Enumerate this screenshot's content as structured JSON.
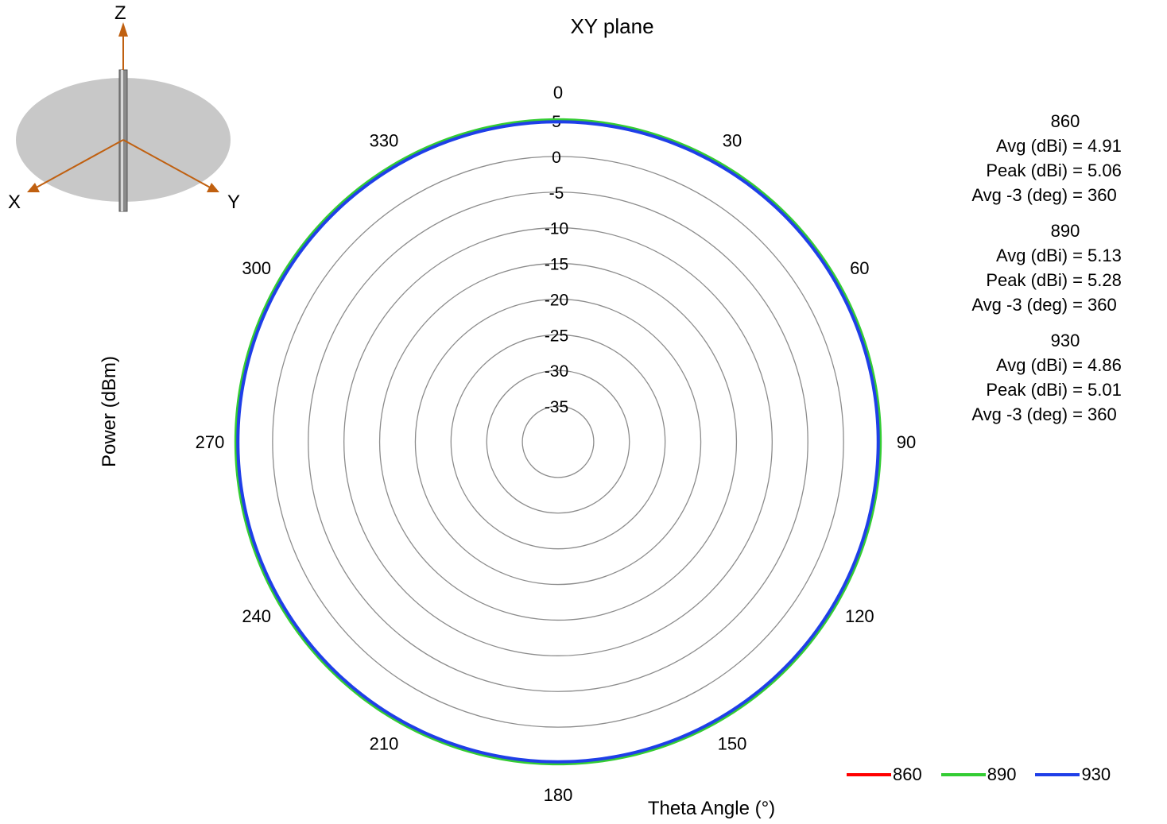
{
  "chart_data": {
    "type": "polar",
    "title": "XY plane",
    "xlabel": "Theta  Angle (°)",
    "ylabel": "Power (dBm)",
    "radial_range": [
      -40,
      5
    ],
    "radial_ticks": [
      "5",
      "0",
      "-5",
      "-10",
      "-15",
      "-20",
      "-25",
      "-30",
      "-35"
    ],
    "angle_ticks": [
      "0",
      "30",
      "60",
      "90",
      "120",
      "150",
      "180",
      "210",
      "240",
      "270",
      "300",
      "330"
    ],
    "angle_unit": "deg",
    "grid": true,
    "series": [
      {
        "name": "860",
        "color": "#ff0000",
        "theta": [
          0,
          45,
          90,
          135,
          180,
          225,
          270,
          315
        ],
        "values": [
          4.91,
          4.91,
          4.91,
          4.91,
          4.91,
          4.91,
          4.91,
          4.91
        ]
      },
      {
        "name": "890",
        "color": "#33cc33",
        "theta": [
          0,
          45,
          90,
          135,
          180,
          225,
          270,
          315
        ],
        "values": [
          5.13,
          5.13,
          5.13,
          5.13,
          5.13,
          5.13,
          5.13,
          5.13
        ]
      },
      {
        "name": "930",
        "color": "#1f3fe8",
        "theta": [
          0,
          45,
          90,
          135,
          180,
          225,
          270,
          315
        ],
        "values": [
          4.86,
          4.86,
          4.86,
          4.86,
          4.86,
          4.86,
          4.86,
          4.86
        ]
      }
    ],
    "legend_placement": "bottom-right"
  },
  "stats": [
    {
      "freq": "860",
      "avg_label": "Avg (dBi) =",
      "avg": "4.91",
      "peak_label": "Peak (dBi) =",
      "peak": "5.06",
      "bw_label": "Avg -3 (deg) =",
      "bw": "360"
    },
    {
      "freq": "890",
      "avg_label": "Avg (dBi) =",
      "avg": "5.13",
      "peak_label": "Peak (dBi) =",
      "peak": "5.28",
      "bw_label": "Avg -3 (deg) =",
      "bw": "360"
    },
    {
      "freq": "930",
      "avg_label": "Avg (dBi) =",
      "avg": "4.86",
      "peak_label": "Peak (dBi) =",
      "peak": "5.01",
      "bw_label": "Avg -3 (deg) =",
      "bw": "360"
    }
  ],
  "axis_icon": {
    "x_label": "X",
    "y_label": "Y",
    "z_label": "Z"
  }
}
